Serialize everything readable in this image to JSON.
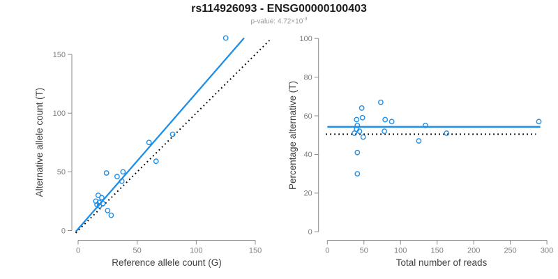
{
  "header": {
    "title": "rs114926093 - ENSG00000100403",
    "pvalue_prefix": "p-value: ",
    "pvalue_mantissa_base": "4.72×10",
    "pvalue_exponent": "-3"
  },
  "colors": {
    "accent_blue": "#1E8FE8",
    "dotted_line": "#000000",
    "axis": "#8a8a8a",
    "tick_label": "#7d7d7d",
    "axis_label": "#3f3f3f",
    "title": "#1b1b1b",
    "subtitle": "#999999",
    "background": "#ffffff"
  },
  "chart_data": [
    {
      "name": "allele-counts-scatter",
      "type": "scatter",
      "xlabel": "Reference allele count (G)",
      "ylabel": "Alternative allele count (T)",
      "xticks": [
        0,
        50,
        100,
        150
      ],
      "yticks": [
        0,
        50,
        100,
        150
      ],
      "xlim": [
        -2,
        163
      ],
      "ylim": [
        -7,
        170
      ],
      "grid": false,
      "points": [
        [
          24,
          49
        ],
        [
          33,
          46
        ],
        [
          38,
          50
        ],
        [
          37,
          42
        ],
        [
          60,
          75
        ],
        [
          66,
          59
        ],
        [
          80,
          82
        ],
        [
          125,
          164
        ],
        [
          17,
          30
        ],
        [
          20,
          28
        ],
        [
          15,
          25
        ],
        [
          18,
          24
        ],
        [
          16,
          22
        ],
        [
          18,
          21
        ],
        [
          21,
          23
        ],
        [
          25,
          17
        ],
        [
          28,
          13
        ]
      ],
      "lines": [
        {
          "name": "regression-line",
          "style": "solid",
          "x0": -2,
          "y0": -1,
          "x1": 140.5,
          "y1": 164
        },
        {
          "name": "identity-line",
          "style": "dotted",
          "x0": -2,
          "y0": -2,
          "x1": 162,
          "y1": 162
        }
      ]
    },
    {
      "name": "percentage-vs-reads-scatter",
      "type": "scatter",
      "xlabel": "Total number of reads",
      "ylabel": "Percentage alternative (T)",
      "xticks": [
        0,
        50,
        100,
        150,
        200,
        250,
        300
      ],
      "yticks": [
        0,
        20,
        40,
        60,
        80,
        100
      ],
      "xlim": [
        -12,
        312
      ],
      "ylim": [
        -4,
        104
      ],
      "grid": false,
      "points": [
        [
          73,
          67
        ],
        [
          47,
          64
        ],
        [
          48,
          59
        ],
        [
          40,
          58
        ],
        [
          79,
          58
        ],
        [
          88,
          57
        ],
        [
          41,
          55
        ],
        [
          40,
          53
        ],
        [
          44,
          52
        ],
        [
          37,
          51
        ],
        [
          49,
          49
        ],
        [
          78,
          52
        ],
        [
          134,
          55
        ],
        [
          125,
          47
        ],
        [
          163,
          51
        ],
        [
          289,
          57
        ],
        [
          41,
          41
        ],
        [
          41,
          30
        ]
      ],
      "lines": [
        {
          "name": "mean-line",
          "style": "solid",
          "x0": 0,
          "y0": 54.3,
          "x1": 291,
          "y1": 54.3
        },
        {
          "name": "fifty-percent-line",
          "style": "dotted",
          "x0": -2,
          "y0": 50.5,
          "x1": 285,
          "y1": 50.5
        }
      ]
    }
  ]
}
